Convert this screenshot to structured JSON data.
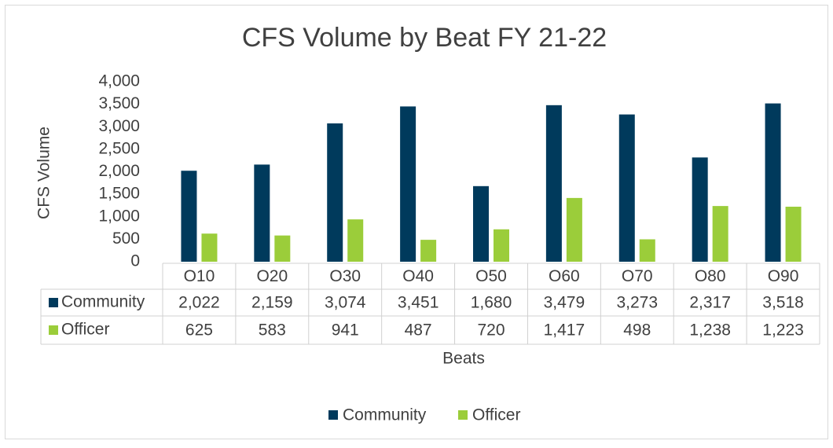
{
  "chart_data": {
    "type": "bar",
    "title": "CFS Volume by Beat FY 21-22",
    "x_label": "Beats",
    "y_label": "CFS Volume",
    "categories": [
      "O10",
      "O20",
      "O30",
      "O40",
      "O50",
      "O60",
      "O70",
      "O80",
      "O90"
    ],
    "series": [
      {
        "name": "Community",
        "color": "#003a5c",
        "values": [
          2022,
          2159,
          3074,
          3451,
          1680,
          3479,
          3273,
          2317,
          3518
        ],
        "value_labels": [
          "2,022",
          "2,159",
          "3,074",
          "3,451",
          "1,680",
          "3,479",
          "3,273",
          "2,317",
          "3,518"
        ]
      },
      {
        "name": "Officer",
        "color": "#9bcd3a",
        "values": [
          625,
          583,
          941,
          487,
          720,
          1417,
          498,
          1238,
          1223
        ],
        "value_labels": [
          "625",
          "583",
          "941",
          "487",
          "720",
          "1,417",
          "498",
          "1,238",
          "1,223"
        ]
      }
    ],
    "ylim": [
      0,
      4000
    ],
    "yticks": [
      0,
      500,
      {
        "value": 1000,
        "label": "1,000"
      },
      {
        "value": 1500,
        "label": "1,500"
      },
      {
        "value": 2000,
        "label": "2,000"
      },
      {
        "value": 2500,
        "label": "2,500"
      },
      {
        "value": 3000,
        "label": "3,000"
      },
      {
        "value": 3500,
        "label": "3,500"
      },
      {
        "value": 4000,
        "label": "4,000"
      }
    ],
    "legend": "bottom"
  }
}
